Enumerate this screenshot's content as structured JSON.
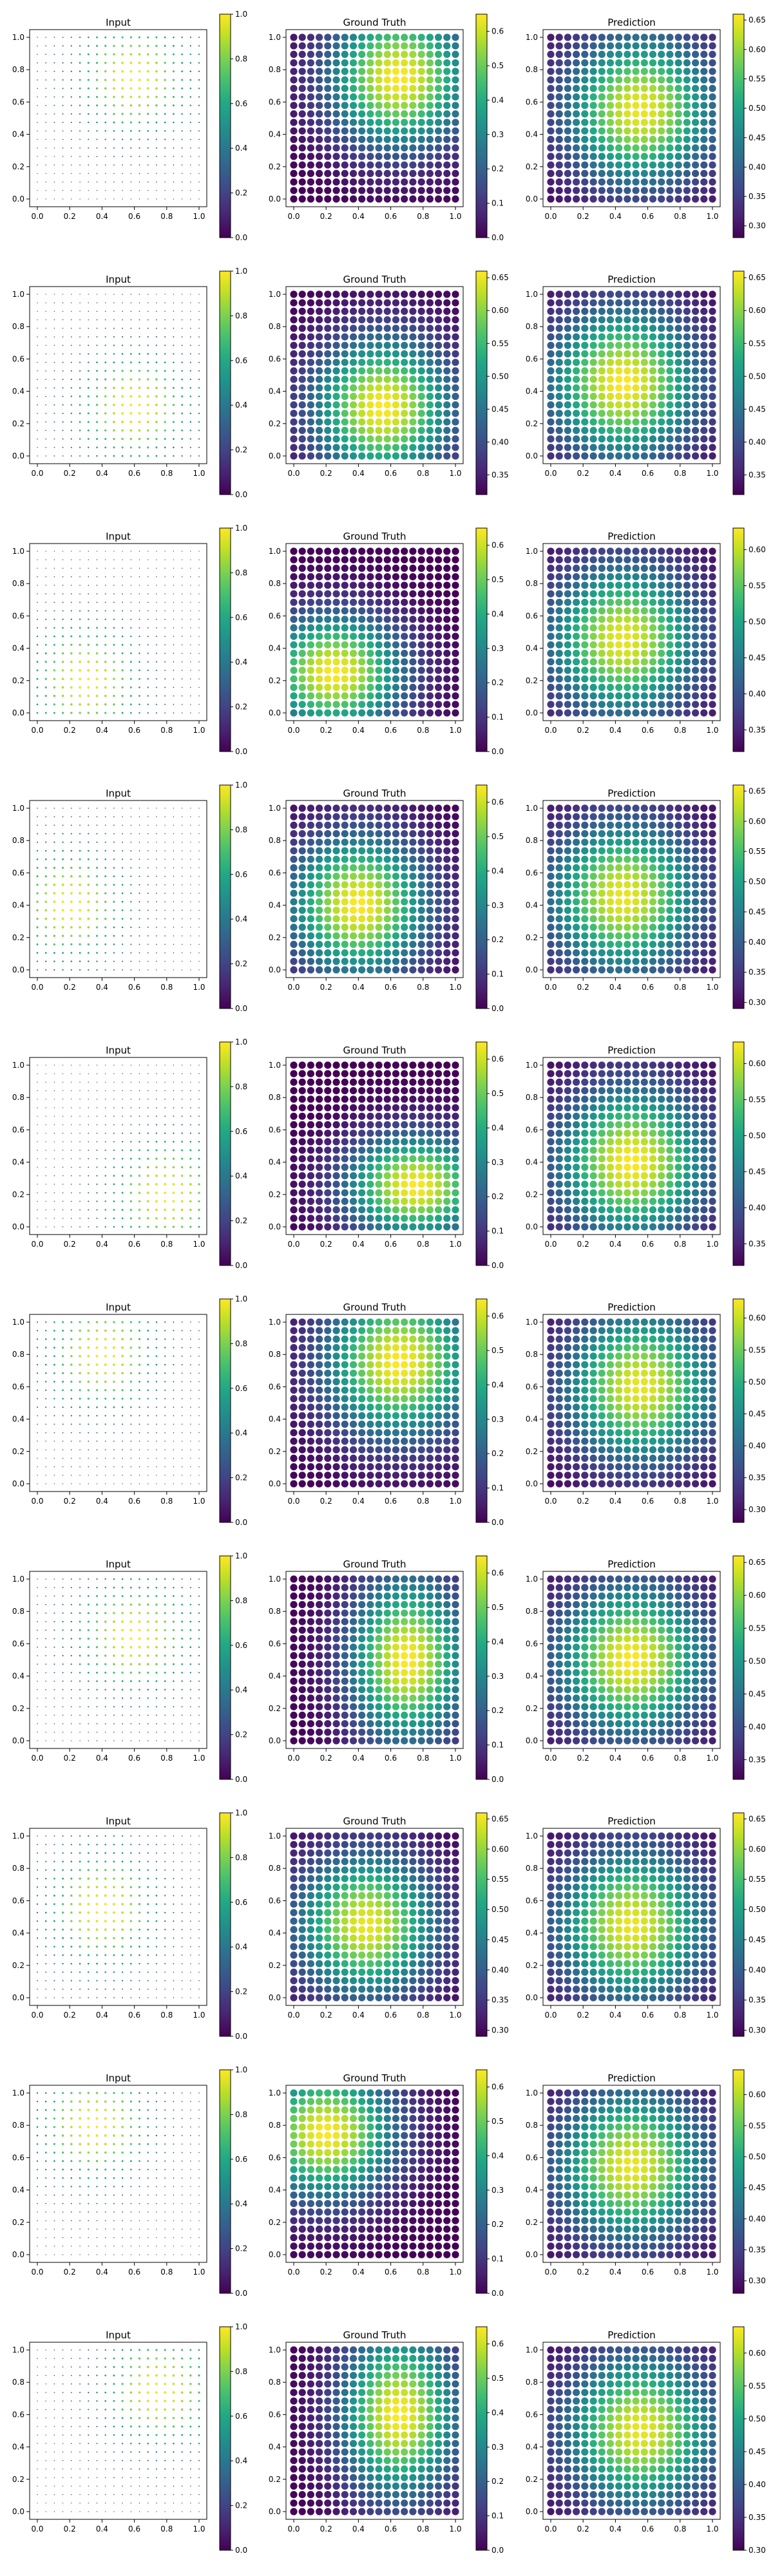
{
  "figure": {
    "rows": 10,
    "grid_n": 20,
    "panel_titles": [
      "Input",
      "Ground Truth",
      "Prediction"
    ],
    "colormap": "viridis"
  },
  "chart_data": [
    {
      "type": "scatter",
      "row": 1,
      "panels": [
        {
          "title": "Input",
          "field": {
            "kind": "blob",
            "cx": 0.6,
            "cy": 0.75,
            "sx": 0.3,
            "sy": 0.3,
            "vmin": 0.0,
            "vmax": 1.0
          },
          "marker": "size",
          "clim": [
            0,
            1
          ],
          "cbar_ticks": [
            "0.0",
            "0.2",
            "0.4",
            "0.6",
            "0.8",
            "1.0"
          ]
        },
        {
          "title": "Ground Truth",
          "field": {
            "kind": "blob",
            "cx": 0.65,
            "cy": 0.75,
            "sx": 0.3,
            "sy": 0.3,
            "vmin": 0.0,
            "vmax": 0.65
          },
          "marker": "color",
          "clim": [
            0.0,
            0.65
          ],
          "cbar_ticks": [
            "0.0",
            "0.1",
            "0.2",
            "0.3",
            "0.4",
            "0.5",
            "0.6"
          ]
        },
        {
          "title": "Prediction",
          "field": {
            "kind": "blob",
            "cx": 0.55,
            "cy": 0.55,
            "sx": 0.32,
            "sy": 0.32,
            "vmin": 0.28,
            "vmax": 0.65
          },
          "marker": "color",
          "clim": [
            0.28,
            0.66
          ],
          "cbar_ticks": [
            "0.30",
            "0.35",
            "0.40",
            "0.45",
            "0.50",
            "0.55",
            "0.60",
            "0.65"
          ]
        }
      ]
    },
    {
      "type": "scatter",
      "row": 2,
      "panels": [
        {
          "title": "Input",
          "field": {
            "kind": "blob",
            "cx": 0.6,
            "cy": 0.3,
            "sx": 0.3,
            "sy": 0.3,
            "vmin": 0.0,
            "vmax": 1.0
          },
          "marker": "size",
          "clim": [
            0,
            1
          ],
          "cbar_ticks": [
            "0.0",
            "0.2",
            "0.4",
            "0.6",
            "0.8",
            "1.0"
          ]
        },
        {
          "title": "Ground Truth",
          "field": {
            "kind": "blob",
            "cx": 0.55,
            "cy": 0.3,
            "sx": 0.3,
            "sy": 0.3,
            "vmin": 0.32,
            "vmax": 0.66
          },
          "marker": "color",
          "clim": [
            0.32,
            0.66
          ],
          "cbar_ticks": [
            "0.35",
            "0.40",
            "0.45",
            "0.50",
            "0.55",
            "0.60",
            "0.65"
          ]
        },
        {
          "title": "Prediction",
          "field": {
            "kind": "blob",
            "cx": 0.45,
            "cy": 0.45,
            "sx": 0.32,
            "sy": 0.32,
            "vmin": 0.32,
            "vmax": 0.66
          },
          "marker": "color",
          "clim": [
            0.32,
            0.66
          ],
          "cbar_ticks": [
            "0.35",
            "0.40",
            "0.45",
            "0.50",
            "0.55",
            "0.60",
            "0.65"
          ]
        }
      ]
    },
    {
      "type": "scatter",
      "row": 3,
      "panels": [
        {
          "title": "Input",
          "field": {
            "kind": "blob",
            "cx": 0.3,
            "cy": 0.2,
            "sx": 0.3,
            "sy": 0.3,
            "vmin": 0.0,
            "vmax": 1.0
          },
          "marker": "size",
          "clim": [
            0,
            1
          ],
          "cbar_ticks": [
            "0.0",
            "0.2",
            "0.4",
            "0.6",
            "0.8",
            "1.0"
          ]
        },
        {
          "title": "Ground Truth",
          "field": {
            "kind": "blob",
            "cx": 0.25,
            "cy": 0.25,
            "sx": 0.3,
            "sy": 0.25,
            "vmin": 0.0,
            "vmax": 0.65
          },
          "marker": "color",
          "clim": [
            0.0,
            0.65
          ],
          "cbar_ticks": [
            "0.0",
            "0.1",
            "0.2",
            "0.3",
            "0.4",
            "0.5",
            "0.6"
          ]
        },
        {
          "title": "Prediction",
          "field": {
            "kind": "blob",
            "cx": 0.45,
            "cy": 0.45,
            "sx": 0.32,
            "sy": 0.32,
            "vmin": 0.32,
            "vmax": 0.62
          },
          "marker": "color",
          "clim": [
            0.32,
            0.63
          ],
          "cbar_ticks": [
            "0.35",
            "0.40",
            "0.45",
            "0.50",
            "0.55",
            "0.60"
          ]
        }
      ]
    },
    {
      "type": "scatter",
      "row": 4,
      "panels": [
        {
          "title": "Input",
          "field": {
            "kind": "blob",
            "cx": 0.2,
            "cy": 0.4,
            "sx": 0.3,
            "sy": 0.3,
            "vmin": 0.0,
            "vmax": 1.0
          },
          "marker": "size",
          "clim": [
            0,
            1
          ],
          "cbar_ticks": [
            "0.0",
            "0.2",
            "0.4",
            "0.6",
            "0.8",
            "1.0"
          ]
        },
        {
          "title": "Ground Truth",
          "field": {
            "kind": "blob",
            "cx": 0.4,
            "cy": 0.4,
            "sx": 0.3,
            "sy": 0.3,
            "vmin": 0.0,
            "vmax": 0.65
          },
          "marker": "color",
          "clim": [
            0.0,
            0.65
          ],
          "cbar_ticks": [
            "0.0",
            "0.1",
            "0.2",
            "0.3",
            "0.4",
            "0.5",
            "0.6"
          ]
        },
        {
          "title": "Prediction",
          "field": {
            "kind": "blob",
            "cx": 0.45,
            "cy": 0.45,
            "sx": 0.32,
            "sy": 0.32,
            "vmin": 0.29,
            "vmax": 0.65
          },
          "marker": "color",
          "clim": [
            0.29,
            0.66
          ],
          "cbar_ticks": [
            "0.30",
            "0.35",
            "0.40",
            "0.45",
            "0.50",
            "0.55",
            "0.60",
            "0.65"
          ]
        }
      ]
    },
    {
      "type": "scatter",
      "row": 5,
      "panels": [
        {
          "title": "Input",
          "field": {
            "kind": "blob",
            "cx": 0.8,
            "cy": 0.2,
            "sx": 0.3,
            "sy": 0.3,
            "vmin": 0.0,
            "vmax": 1.0
          },
          "marker": "size",
          "clim": [
            0,
            1
          ],
          "cbar_ticks": [
            "0.0",
            "0.2",
            "0.4",
            "0.6",
            "0.8",
            "1.0"
          ]
        },
        {
          "title": "Ground Truth",
          "field": {
            "kind": "blob",
            "cx": 0.75,
            "cy": 0.25,
            "sx": 0.3,
            "sy": 0.22,
            "vmin": 0.0,
            "vmax": 0.65
          },
          "marker": "color",
          "clim": [
            0.0,
            0.65
          ],
          "cbar_ticks": [
            "0.0",
            "0.1",
            "0.2",
            "0.3",
            "0.4",
            "0.5",
            "0.6"
          ]
        },
        {
          "title": "Prediction",
          "field": {
            "kind": "blob",
            "cx": 0.5,
            "cy": 0.4,
            "sx": 0.32,
            "sy": 0.32,
            "vmin": 0.32,
            "vmax": 0.63
          },
          "marker": "color",
          "clim": [
            0.32,
            0.63
          ],
          "cbar_ticks": [
            "0.35",
            "0.40",
            "0.45",
            "0.50",
            "0.55",
            "0.60"
          ]
        }
      ]
    },
    {
      "type": "scatter",
      "row": 6,
      "panels": [
        {
          "title": "Input",
          "field": {
            "kind": "blob",
            "cx": 0.4,
            "cy": 0.8,
            "sx": 0.3,
            "sy": 0.3,
            "vmin": 0.0,
            "vmax": 1.0
          },
          "marker": "size",
          "clim": [
            0,
            1
          ],
          "cbar_ticks": [
            "0.0",
            "0.2",
            "0.4",
            "0.6",
            "0.8",
            "1.0"
          ]
        },
        {
          "title": "Ground Truth",
          "field": {
            "kind": "blob",
            "cx": 0.65,
            "cy": 0.75,
            "sx": 0.32,
            "sy": 0.32,
            "vmin": 0.0,
            "vmax": 0.65
          },
          "marker": "color",
          "clim": [
            0.0,
            0.65
          ],
          "cbar_ticks": [
            "0.0",
            "0.1",
            "0.2",
            "0.3",
            "0.4",
            "0.5",
            "0.6"
          ]
        },
        {
          "title": "Prediction",
          "field": {
            "kind": "blob",
            "cx": 0.55,
            "cy": 0.6,
            "sx": 0.32,
            "sy": 0.32,
            "vmin": 0.28,
            "vmax": 0.62
          },
          "marker": "color",
          "clim": [
            0.28,
            0.63
          ],
          "cbar_ticks": [
            "0.30",
            "0.35",
            "0.40",
            "0.45",
            "0.50",
            "0.55",
            "0.60"
          ]
        }
      ]
    },
    {
      "type": "scatter",
      "row": 7,
      "panels": [
        {
          "title": "Input",
          "field": {
            "kind": "blob",
            "cx": 0.6,
            "cy": 0.65,
            "sx": 0.32,
            "sy": 0.3,
            "vmin": 0.0,
            "vmax": 1.0
          },
          "marker": "size",
          "clim": [
            0,
            1
          ],
          "cbar_ticks": [
            "0.0",
            "0.2",
            "0.4",
            "0.6",
            "0.8",
            "1.0"
          ]
        },
        {
          "title": "Ground Truth",
          "field": {
            "kind": "blob",
            "cx": 0.7,
            "cy": 0.5,
            "sx": 0.25,
            "sy": 0.35,
            "vmin": 0.0,
            "vmax": 0.65
          },
          "marker": "color",
          "clim": [
            0.0,
            0.65
          ],
          "cbar_ticks": [
            "0.0",
            "0.1",
            "0.2",
            "0.3",
            "0.4",
            "0.5",
            "0.6"
          ]
        },
        {
          "title": "Prediction",
          "field": {
            "kind": "blob",
            "cx": 0.5,
            "cy": 0.5,
            "sx": 0.32,
            "sy": 0.32,
            "vmin": 0.32,
            "vmax": 0.66
          },
          "marker": "color",
          "clim": [
            0.32,
            0.66
          ],
          "cbar_ticks": [
            "0.35",
            "0.40",
            "0.45",
            "0.50",
            "0.55",
            "0.60",
            "0.65"
          ]
        }
      ]
    },
    {
      "type": "scatter",
      "row": 8,
      "panels": [
        {
          "title": "Input",
          "field": {
            "kind": "blob",
            "cx": 0.4,
            "cy": 0.55,
            "sx": 0.3,
            "sy": 0.32,
            "vmin": 0.0,
            "vmax": 1.0
          },
          "marker": "size",
          "clim": [
            0,
            1
          ],
          "cbar_ticks": [
            "0.0",
            "0.2",
            "0.4",
            "0.6",
            "0.8",
            "1.0"
          ]
        },
        {
          "title": "Ground Truth",
          "field": {
            "kind": "blob",
            "cx": 0.45,
            "cy": 0.45,
            "sx": 0.3,
            "sy": 0.3,
            "vmin": 0.29,
            "vmax": 0.65
          },
          "marker": "color",
          "clim": [
            0.29,
            0.66
          ],
          "cbar_ticks": [
            "0.30",
            "0.35",
            "0.40",
            "0.45",
            "0.50",
            "0.55",
            "0.60",
            "0.65"
          ]
        },
        {
          "title": "Prediction",
          "field": {
            "kind": "blob",
            "cx": 0.5,
            "cy": 0.45,
            "sx": 0.32,
            "sy": 0.32,
            "vmin": 0.29,
            "vmax": 0.65
          },
          "marker": "color",
          "clim": [
            0.29,
            0.66
          ],
          "cbar_ticks": [
            "0.30",
            "0.35",
            "0.40",
            "0.45",
            "0.50",
            "0.55",
            "0.60",
            "0.65"
          ]
        }
      ]
    },
    {
      "type": "scatter",
      "row": 9,
      "panels": [
        {
          "title": "Input",
          "field": {
            "kind": "blob",
            "cx": 0.35,
            "cy": 0.8,
            "sx": 0.3,
            "sy": 0.3,
            "vmin": 0.0,
            "vmax": 1.0
          },
          "marker": "size",
          "clim": [
            0,
            1
          ],
          "cbar_ticks": [
            "0.0",
            "0.2",
            "0.4",
            "0.6",
            "0.8",
            "1.0"
          ]
        },
        {
          "title": "Ground Truth",
          "field": {
            "kind": "blob",
            "cx": 0.2,
            "cy": 0.75,
            "sx": 0.3,
            "sy": 0.28,
            "vmin": 0.0,
            "vmax": 0.65
          },
          "marker": "color",
          "clim": [
            0.0,
            0.65
          ],
          "cbar_ticks": [
            "0.0",
            "0.1",
            "0.2",
            "0.3",
            "0.4",
            "0.5",
            "0.6"
          ]
        },
        {
          "title": "Prediction",
          "field": {
            "kind": "blob",
            "cx": 0.5,
            "cy": 0.55,
            "sx": 0.32,
            "sy": 0.32,
            "vmin": 0.28,
            "vmax": 0.63
          },
          "marker": "color",
          "clim": [
            0.28,
            0.64
          ],
          "cbar_ticks": [
            "0.30",
            "0.35",
            "0.40",
            "0.45",
            "0.50",
            "0.55",
            "0.60"
          ]
        }
      ]
    },
    {
      "type": "scatter",
      "row": 10,
      "panels": [
        {
          "title": "Input",
          "field": {
            "kind": "blob",
            "cx": 0.75,
            "cy": 0.75,
            "sx": 0.3,
            "sy": 0.3,
            "vmin": 0.0,
            "vmax": 1.0
          },
          "marker": "size",
          "clim": [
            0,
            1
          ],
          "cbar_ticks": [
            "0.0",
            "0.2",
            "0.4",
            "0.6",
            "0.8",
            "1.0"
          ]
        },
        {
          "title": "Ground Truth",
          "field": {
            "kind": "blob",
            "cx": 0.65,
            "cy": 0.6,
            "sx": 0.25,
            "sy": 0.35,
            "vmin": 0.0,
            "vmax": 0.65
          },
          "marker": "color",
          "clim": [
            0.0,
            0.65
          ],
          "cbar_ticks": [
            "0.0",
            "0.1",
            "0.2",
            "0.3",
            "0.4",
            "0.5",
            "0.6"
          ]
        },
        {
          "title": "Prediction",
          "field": {
            "kind": "blob",
            "cx": 0.55,
            "cy": 0.5,
            "sx": 0.32,
            "sy": 0.32,
            "vmin": 0.3,
            "vmax": 0.63
          },
          "marker": "color",
          "clim": [
            0.3,
            0.64
          ],
          "cbar_ticks": [
            "0.30",
            "0.35",
            "0.40",
            "0.45",
            "0.50",
            "0.55",
            "0.60"
          ]
        }
      ]
    }
  ],
  "axes": {
    "xlim": [
      0.0,
      1.0
    ],
    "ylim": [
      0.0,
      1.0
    ],
    "ticks": [
      "0.0",
      "0.2",
      "0.4",
      "0.6",
      "0.8",
      "1.0"
    ]
  }
}
